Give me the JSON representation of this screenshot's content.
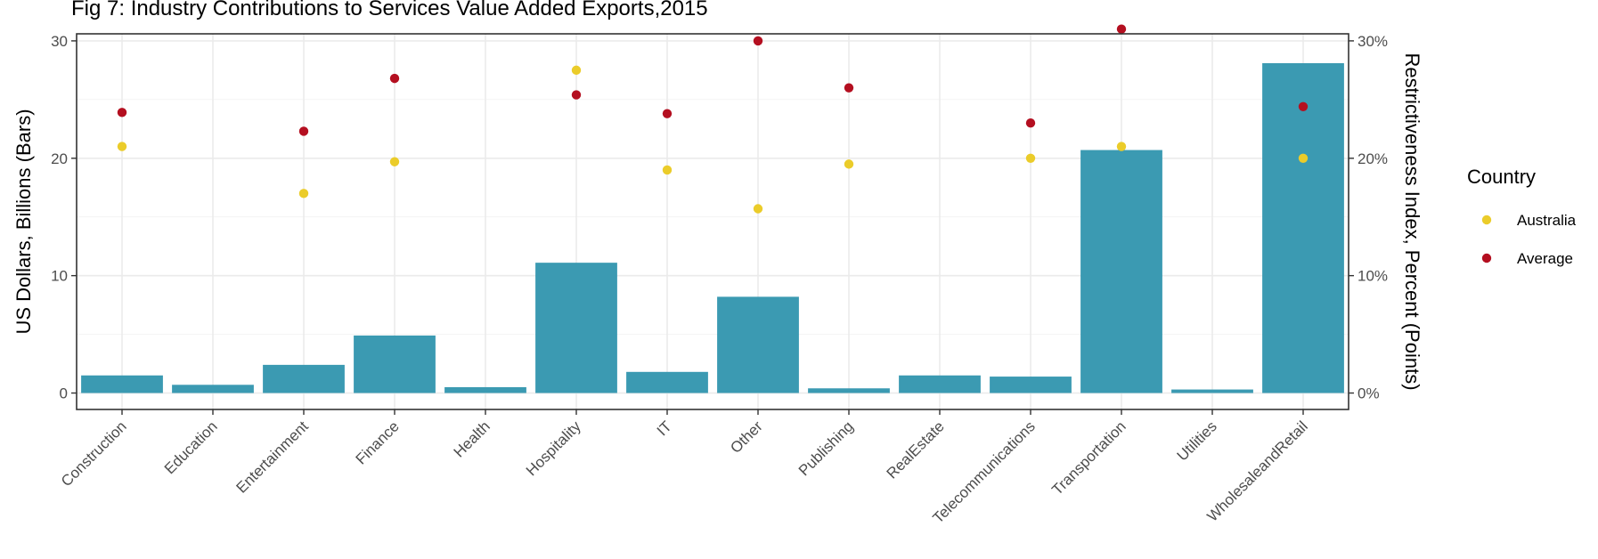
{
  "chart_data": {
    "type": "bar",
    "title": "Fig 7: Industry Contributions to Services Value Added Exports,2015",
    "xlabel": "",
    "ylabel": "US Dollars, Billions (Bars)",
    "y2label": "Restrictiveness Index, Percent (Points)",
    "categories": [
      "Construction",
      "Education",
      "Entertainment",
      "Finance",
      "Health",
      "Hospitality",
      "IT",
      "Other",
      "Publishing",
      "RealEstate",
      "Telecommunications",
      "Transportation",
      "Utilities",
      "WholesaleandRetail"
    ],
    "bar_values": [
      1.5,
      0.7,
      2.4,
      4.9,
      0.5,
      11.1,
      1.8,
      8.2,
      0.4,
      1.5,
      1.4,
      20.7,
      0.3,
      28.1
    ],
    "bar_color": "#3b9ab2",
    "ylim": [
      -1.4,
      30.6
    ],
    "yticks": [
      0,
      10,
      20,
      30
    ],
    "y2ticks": [
      "0%",
      "10%",
      "20%",
      "30%"
    ],
    "series": [
      {
        "name": "Australia",
        "color": "#ebcc2a",
        "values": [
          21.0,
          null,
          17.0,
          19.7,
          null,
          27.5,
          19.0,
          15.7,
          19.5,
          null,
          20.0,
          21.0,
          null,
          20.0
        ]
      },
      {
        "name": "Average",
        "color": "#b40f20",
        "values": [
          23.9,
          null,
          22.3,
          26.8,
          null,
          25.4,
          23.8,
          30.0,
          26.0,
          null,
          23.0,
          31.0,
          null,
          24.4
        ]
      }
    ],
    "legend": {
      "title": "Country",
      "position": "right"
    },
    "grid": true
  }
}
